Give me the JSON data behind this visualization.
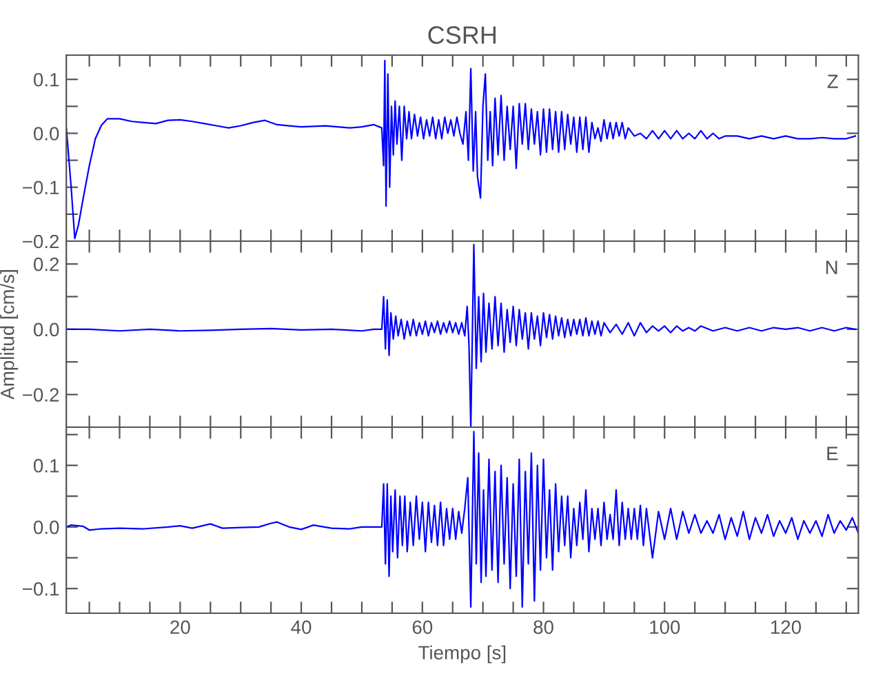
{
  "chart_data": [
    {
      "type": "line",
      "title": "CSRH",
      "annotations": [
        "Z"
      ],
      "tick_labels": "y",
      "grid": false,
      "legend": false,
      "xlim": [
        1.2,
        132
      ],
      "xticks": [
        {
          "value": 5,
          "label": null
        },
        {
          "value": 10,
          "label": null
        },
        {
          "value": 15,
          "label": null
        },
        {
          "value": 20,
          "label": null
        },
        {
          "value": 25,
          "label": null
        },
        {
          "value": 30,
          "label": null
        },
        {
          "value": 35,
          "label": null
        },
        {
          "value": 40,
          "label": null
        },
        {
          "value": 45,
          "label": null
        },
        {
          "value": 50,
          "label": null
        },
        {
          "value": 55,
          "label": null
        },
        {
          "value": 60,
          "label": null
        },
        {
          "value": 65,
          "label": null
        },
        {
          "value": 70,
          "label": null
        },
        {
          "value": 75,
          "label": null
        },
        {
          "value": 80,
          "label": null
        },
        {
          "value": 85,
          "label": null
        },
        {
          "value": 90,
          "label": null
        },
        {
          "value": 95,
          "label": null
        },
        {
          "value": 100,
          "label": null
        },
        {
          "value": 105,
          "label": null
        },
        {
          "value": 110,
          "label": null
        },
        {
          "value": 115,
          "label": null
        },
        {
          "value": 120,
          "label": null
        },
        {
          "value": 125,
          "label": null
        },
        {
          "value": 130,
          "label": null
        }
      ],
      "ylim": [
        -0.2,
        0.145
      ],
      "yticks": [
        {
          "value": -0.2,
          "label": "−0.2"
        },
        {
          "value": -0.15,
          "label": null
        },
        {
          "value": -0.1,
          "label": "−0.1"
        },
        {
          "value": -0.05,
          "label": null
        },
        {
          "value": 0,
          "label": "0.0"
        },
        {
          "value": 0.05,
          "label": null
        },
        {
          "value": 0.1,
          "label": "0.1"
        }
      ],
      "series": [
        {
          "color": "#0000ff",
          "x": [
            1.2,
            1.5,
            2,
            2.6,
            3.2,
            4,
            5,
            6,
            7,
            8,
            10,
            12,
            14,
            16,
            18,
            20,
            22,
            24,
            26,
            28,
            30,
            32,
            34,
            36,
            38,
            40,
            42,
            44,
            46,
            48,
            50,
            52,
            53.3,
            53.6,
            53.8,
            54.0,
            54.3,
            54.6,
            54.9,
            55.2,
            55.5,
            55.8,
            56.2,
            56.6,
            57.0,
            57.4,
            57.8,
            58.2,
            58.7,
            59.2,
            59.7,
            60.2,
            60.7,
            61.2,
            61.7,
            62.2,
            62.7,
            63.2,
            63.7,
            64.2,
            64.7,
            65.2,
            65.7,
            66.2,
            66.7,
            67.2,
            67.6,
            68.0,
            68.4,
            68.8,
            69.1,
            69.6,
            70.0,
            70.4,
            70.8,
            71.2,
            71.6,
            72.0,
            72.5,
            73.0,
            73.5,
            74.0,
            74.5,
            75.0,
            75.5,
            76.0,
            76.5,
            77.0,
            77.5,
            78.0,
            78.5,
            79.0,
            79.5,
            80.0,
            80.5,
            81.0,
            81.5,
            82.0,
            82.5,
            83.0,
            83.5,
            84.0,
            84.5,
            85.0,
            85.5,
            86.0,
            86.5,
            87.0,
            87.5,
            88.0,
            88.5,
            89.0,
            89.5,
            90.0,
            90.5,
            91.0,
            91.5,
            92.0,
            92.5,
            93.0,
            93.5,
            94.0,
            95,
            96,
            97,
            98,
            99,
            100,
            101,
            102,
            103,
            104,
            105,
            106,
            107,
            108,
            109,
            110,
            112,
            114,
            116,
            118,
            120,
            122,
            124,
            126,
            128,
            130,
            131.5
          ],
          "values": [
            0.01,
            -0.03,
            -0.1,
            -0.195,
            -0.17,
            -0.12,
            -0.06,
            -0.01,
            0.015,
            0.027,
            0.027,
            0.022,
            0.02,
            0.018,
            0.024,
            0.025,
            0.022,
            0.018,
            0.014,
            0.01,
            0.014,
            0.02,
            0.024,
            0.016,
            0.014,
            0.012,
            0.013,
            0.014,
            0.012,
            0.01,
            0.012,
            0.016,
            0.01,
            -0.06,
            0.135,
            -0.135,
            0.11,
            -0.1,
            0.05,
            -0.04,
            0.06,
            -0.02,
            0.05,
            -0.05,
            0.05,
            -0.01,
            0.04,
            -0.01,
            0.035,
            -0.005,
            0.03,
            -0.01,
            0.025,
            -0.005,
            0.03,
            -0.01,
            0.025,
            -0.01,
            0.03,
            0.0,
            0.025,
            -0.005,
            0.03,
            0.0,
            -0.02,
            0.04,
            -0.05,
            0.12,
            -0.07,
            0.04,
            -0.08,
            -0.12,
            0.05,
            0.11,
            -0.05,
            0.04,
            -0.06,
            0.065,
            -0.04,
            0.07,
            -0.05,
            0.05,
            -0.03,
            0.05,
            -0.065,
            0.055,
            -0.02,
            0.055,
            -0.03,
            0.045,
            -0.02,
            0.04,
            -0.04,
            0.045,
            -0.035,
            0.045,
            -0.03,
            0.04,
            -0.035,
            0.04,
            -0.03,
            0.035,
            -0.02,
            0.03,
            -0.035,
            0.03,
            -0.03,
            0.03,
            -0.035,
            0.02,
            -0.01,
            0.01,
            -0.015,
            0.025,
            -0.01,
            0.02,
            -0.01,
            0.02,
            -0.005,
            0.02,
            -0.01,
            0.01,
            -0.005,
            0.0,
            -0.01,
            0.005,
            -0.01,
            0.005,
            -0.01,
            0.005,
            -0.01,
            0.0,
            -0.01,
            0.005,
            -0.01,
            0.0,
            -0.01,
            -0.005,
            -0.005,
            -0.01,
            -0.005,
            -0.01,
            -0.005,
            -0.01,
            -0.01,
            -0.008,
            -0.01,
            -0.01,
            -0.005
          ]
        }
      ]
    },
    {
      "type": "line",
      "annotations": [
        "N"
      ],
      "ylabel": "Amplitud [cm/s]",
      "tick_labels": "y",
      "grid": false,
      "legend": false,
      "xlim": [
        1.2,
        132
      ],
      "xticks": [
        {
          "value": 5,
          "label": null
        },
        {
          "value": 10,
          "label": null
        },
        {
          "value": 15,
          "label": null
        },
        {
          "value": 20,
          "label": null
        },
        {
          "value": 25,
          "label": null
        },
        {
          "value": 30,
          "label": null
        },
        {
          "value": 35,
          "label": null
        },
        {
          "value": 40,
          "label": null
        },
        {
          "value": 45,
          "label": null
        },
        {
          "value": 50,
          "label": null
        },
        {
          "value": 55,
          "label": null
        },
        {
          "value": 60,
          "label": null
        },
        {
          "value": 65,
          "label": null
        },
        {
          "value": 70,
          "label": null
        },
        {
          "value": 75,
          "label": null
        },
        {
          "value": 80,
          "label": null
        },
        {
          "value": 85,
          "label": null
        },
        {
          "value": 90,
          "label": null
        },
        {
          "value": 95,
          "label": null
        },
        {
          "value": 100,
          "label": null
        },
        {
          "value": 105,
          "label": null
        },
        {
          "value": 110,
          "label": null
        },
        {
          "value": 115,
          "label": null
        },
        {
          "value": 120,
          "label": null
        },
        {
          "value": 125,
          "label": null
        },
        {
          "value": 130,
          "label": null
        }
      ],
      "ylim": [
        -0.3,
        0.27
      ],
      "yticks": [
        {
          "value": -0.3,
          "label": null
        },
        {
          "value": -0.2,
          "label": "−0.2"
        },
        {
          "value": -0.1,
          "label": null
        },
        {
          "value": 0,
          "label": "0.0"
        },
        {
          "value": 0.1,
          "label": null
        },
        {
          "value": 0.2,
          "label": "0.2"
        }
      ],
      "series": [
        {
          "color": "#0000ff",
          "x": [
            1.2,
            5,
            10,
            15,
            20,
            25,
            30,
            35,
            40,
            45,
            50,
            52,
            53.3,
            53.6,
            53.9,
            54.2,
            54.5,
            54.8,
            55.2,
            55.6,
            56.0,
            56.5,
            57.0,
            57.5,
            58.0,
            58.5,
            59.0,
            59.5,
            60.0,
            60.5,
            61.0,
            61.5,
            62.0,
            62.5,
            63.0,
            63.5,
            64.0,
            64.5,
            65.0,
            65.5,
            66.0,
            66.5,
            67.0,
            67.4,
            67.7,
            68.0,
            68.5,
            68.9,
            69.3,
            69.7,
            70.1,
            70.5,
            71.0,
            71.5,
            72.0,
            72.5,
            73.0,
            73.5,
            74.0,
            74.5,
            75.0,
            75.5,
            76.0,
            76.5,
            77.0,
            77.5,
            78.0,
            78.5,
            79.0,
            79.5,
            80.0,
            80.5,
            81.0,
            81.5,
            82.0,
            82.5,
            83.0,
            83.5,
            84.0,
            84.5,
            85.0,
            85.5,
            86.0,
            86.5,
            87.0,
            87.5,
            88.0,
            88.5,
            89.0,
            89.5,
            90.0,
            91,
            92,
            93,
            94,
            95,
            96,
            97,
            98,
            99,
            100,
            101,
            102,
            103,
            104,
            105,
            106,
            108,
            110,
            112,
            114,
            116,
            118,
            120,
            122,
            124,
            126,
            128,
            130,
            131.5
          ],
          "values": [
            0.0,
            0.0,
            -0.005,
            0.0,
            -0.005,
            -0.003,
            0.0,
            0.002,
            -0.002,
            0.0,
            -0.005,
            0.0,
            0.0,
            0.1,
            -0.06,
            0.09,
            -0.08,
            0.05,
            -0.03,
            0.04,
            -0.02,
            0.03,
            -0.03,
            0.025,
            -0.02,
            0.03,
            -0.02,
            0.02,
            -0.015,
            0.025,
            -0.02,
            0.02,
            -0.01,
            0.025,
            -0.015,
            0.02,
            -0.01,
            0.025,
            -0.01,
            0.02,
            -0.015,
            0.02,
            -0.02,
            0.07,
            -0.05,
            -0.3,
            0.26,
            -0.12,
            0.1,
            -0.1,
            0.11,
            -0.07,
            0.08,
            -0.06,
            0.1,
            -0.05,
            0.08,
            -0.07,
            0.06,
            -0.04,
            0.07,
            -0.05,
            0.06,
            -0.03,
            0.05,
            -0.06,
            0.05,
            -0.03,
            0.04,
            -0.05,
            0.05,
            -0.025,
            0.045,
            -0.03,
            0.04,
            -0.02,
            0.035,
            -0.025,
            0.03,
            -0.02,
            0.03,
            -0.015,
            0.03,
            -0.02,
            0.035,
            -0.02,
            0.025,
            -0.015,
            0.025,
            -0.02,
            0.02,
            -0.01,
            0.015,
            -0.015,
            0.02,
            -0.02,
            0.02,
            -0.01,
            0.01,
            -0.005,
            0.01,
            -0.01,
            0.01,
            -0.005,
            0.005,
            -0.005,
            0.01,
            -0.005,
            0.005,
            -0.005,
            0.005,
            -0.005,
            0.005,
            0.0,
            0.005,
            -0.005,
            0.005,
            -0.005,
            0.005,
            0.0
          ]
        }
      ]
    },
    {
      "type": "line",
      "annotations": [
        "E"
      ],
      "xlabel": "Tiempo [s]",
      "grid": false,
      "legend": false,
      "xlim": [
        1.2,
        132
      ],
      "xticks": [
        {
          "value": 5,
          "label": null
        },
        {
          "value": 10,
          "label": null
        },
        {
          "value": 15,
          "label": null
        },
        {
          "value": 20,
          "label": "20"
        },
        {
          "value": 25,
          "label": null
        },
        {
          "value": 30,
          "label": null
        },
        {
          "value": 35,
          "label": null
        },
        {
          "value": 40,
          "label": "40"
        },
        {
          "value": 45,
          "label": null
        },
        {
          "value": 50,
          "label": null
        },
        {
          "value": 55,
          "label": null
        },
        {
          "value": 60,
          "label": "60"
        },
        {
          "value": 65,
          "label": null
        },
        {
          "value": 70,
          "label": null
        },
        {
          "value": 75,
          "label": null
        },
        {
          "value": 80,
          "label": "80"
        },
        {
          "value": 85,
          "label": null
        },
        {
          "value": 90,
          "label": null
        },
        {
          "value": 95,
          "label": null
        },
        {
          "value": 100,
          "label": "100"
        },
        {
          "value": 105,
          "label": null
        },
        {
          "value": 110,
          "label": null
        },
        {
          "value": 115,
          "label": null
        },
        {
          "value": 120,
          "label": "120"
        },
        {
          "value": 125,
          "label": null
        },
        {
          "value": 130,
          "label": null
        }
      ],
      "ylim": [
        -0.14,
        0.162
      ],
      "yticks": [
        {
          "value": -0.1,
          "label": "−0.1"
        },
        {
          "value": -0.05,
          "label": null
        },
        {
          "value": 0,
          "label": "0.0"
        },
        {
          "value": 0.05,
          "label": null
        },
        {
          "value": 0.1,
          "label": "0.1"
        },
        {
          "value": 0.15,
          "label": null
        }
      ],
      "series": [
        {
          "color": "#0000ff",
          "x": [
            1.2,
            2,
            4,
            5,
            7,
            10,
            14,
            18,
            20,
            22,
            25,
            27,
            30,
            33,
            35,
            36,
            38,
            40,
            42,
            45,
            48,
            50,
            53.3,
            53.6,
            53.9,
            54.2,
            54.5,
            54.8,
            55.1,
            55.5,
            55.9,
            56.3,
            56.7,
            57.1,
            57.5,
            58.0,
            58.5,
            59.0,
            59.5,
            60.0,
            60.5,
            61.0,
            61.5,
            62.0,
            62.5,
            63.0,
            63.5,
            64.0,
            64.5,
            65.0,
            65.5,
            66.0,
            66.5,
            67.0,
            67.5,
            68.0,
            68.5,
            68.9,
            69.3,
            69.7,
            70.1,
            70.5,
            71.0,
            71.5,
            72.0,
            72.5,
            73.0,
            73.5,
            74.0,
            74.5,
            75.0,
            75.5,
            76.0,
            76.5,
            77.0,
            77.5,
            78.0,
            78.5,
            79.0,
            79.5,
            80.0,
            80.5,
            81.0,
            81.5,
            82.0,
            82.5,
            83.0,
            83.5,
            84.0,
            84.5,
            85.0,
            85.5,
            86.0,
            86.5,
            87.0,
            87.5,
            88.0,
            88.5,
            89.0,
            89.5,
            90.0,
            90.5,
            91.0,
            91.5,
            92.0,
            92.5,
            93.0,
            93.5,
            94.0,
            94.5,
            95.0,
            95.5,
            96.0,
            96.5,
            97.0,
            98,
            99,
            100,
            101,
            102,
            103,
            104,
            105,
            106,
            107,
            108,
            109,
            110,
            111,
            112,
            113,
            114,
            115,
            116,
            117,
            118,
            119,
            120,
            121,
            122,
            123,
            124,
            125,
            126,
            127,
            128,
            129,
            130,
            131,
            132
          ],
          "values": [
            0.0,
            0.003,
            0.001,
            -0.005,
            -0.003,
            -0.002,
            -0.003,
            0.0,
            0.002,
            -0.002,
            0.005,
            -0.002,
            -0.001,
            0.0,
            0.006,
            0.008,
            0.0,
            -0.004,
            0.003,
            -0.002,
            -0.003,
            0.0,
            0.0,
            0.07,
            -0.06,
            0.07,
            -0.08,
            0.05,
            -0.04,
            0.06,
            -0.05,
            0.05,
            -0.03,
            0.05,
            -0.04,
            0.04,
            -0.03,
            0.05,
            -0.02,
            0.04,
            -0.04,
            0.04,
            -0.025,
            0.035,
            -0.03,
            0.04,
            -0.03,
            0.03,
            -0.02,
            0.03,
            -0.02,
            0.025,
            -0.01,
            0.03,
            0.08,
            -0.13,
            0.155,
            -0.06,
            0.12,
            -0.09,
            0.06,
            -0.08,
            0.11,
            -0.07,
            0.09,
            -0.09,
            0.1,
            -0.06,
            0.08,
            -0.1,
            0.07,
            -0.08,
            0.11,
            -0.13,
            0.09,
            -0.06,
            0.12,
            -0.12,
            0.1,
            -0.07,
            0.11,
            -0.05,
            0.06,
            -0.07,
            0.07,
            -0.04,
            0.05,
            -0.03,
            0.05,
            -0.05,
            0.03,
            -0.03,
            0.04,
            -0.02,
            0.06,
            -0.04,
            0.03,
            -0.02,
            0.03,
            -0.03,
            0.04,
            -0.02,
            0.02,
            -0.02,
            0.06,
            -0.03,
            0.04,
            -0.02,
            0.03,
            -0.02,
            0.03,
            -0.02,
            0.035,
            -0.03,
            0.03,
            -0.05,
            0.025,
            -0.02,
            0.03,
            -0.02,
            0.025,
            -0.01,
            0.02,
            -0.01,
            0.01,
            -0.01,
            0.02,
            -0.02,
            0.015,
            -0.015,
            0.025,
            -0.02,
            0.015,
            -0.01,
            0.02,
            -0.015,
            0.01,
            -0.01,
            0.015,
            -0.02,
            0.01,
            -0.01,
            0.01,
            -0.015,
            0.02,
            -0.01,
            0.01,
            -0.005,
            0.015,
            -0.01
          ]
        }
      ]
    }
  ]
}
